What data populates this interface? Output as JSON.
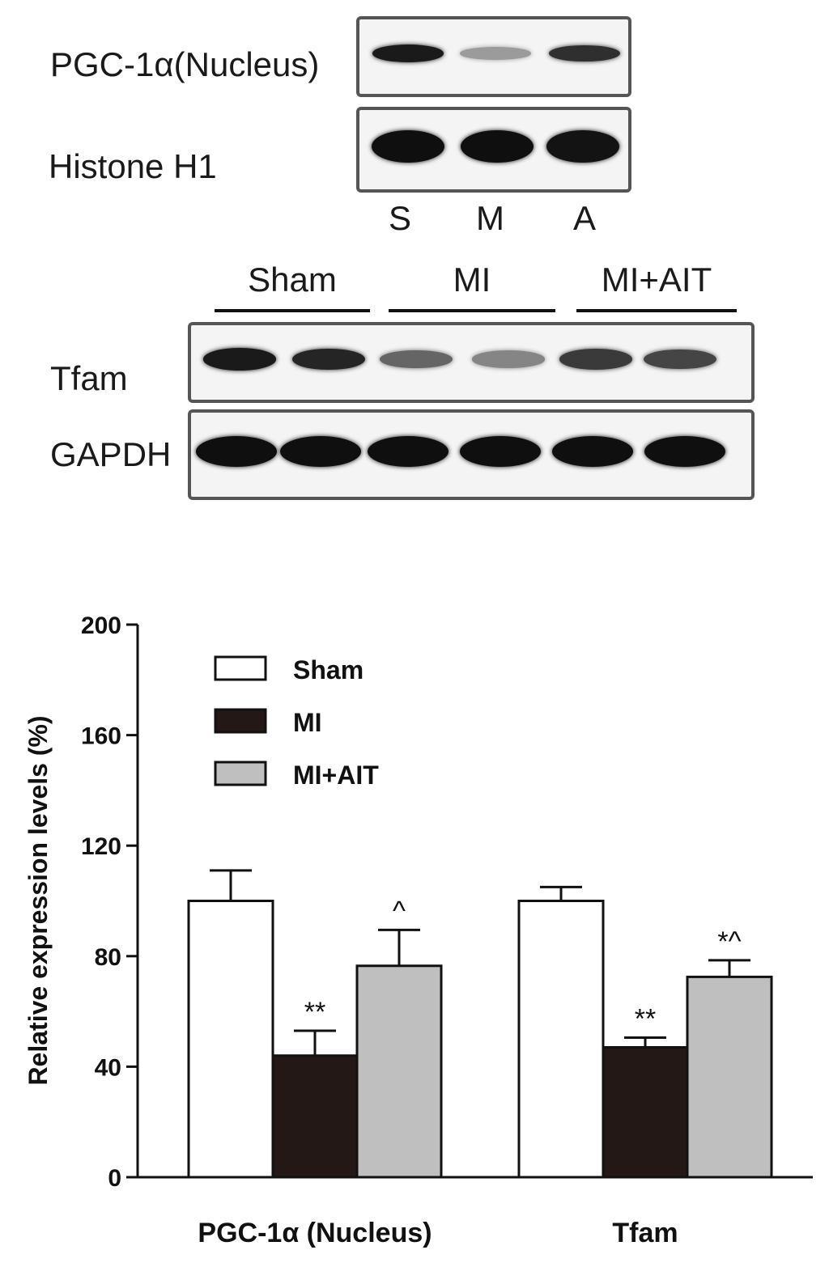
{
  "blot_top": {
    "rows": [
      {
        "label": "PGC-1α(Nucleus)",
        "band_intensity": [
          0.95,
          0.35,
          0.85
        ]
      },
      {
        "label": "Histone H1",
        "band_intensity": [
          1.0,
          1.0,
          0.98
        ]
      }
    ],
    "lanes": [
      "S",
      "M",
      "A"
    ]
  },
  "blot_bottom": {
    "groups": [
      "Sham",
      "MI",
      "MI+AIT"
    ],
    "rows": [
      {
        "label": "Tfam",
        "band_intensity": [
          0.95,
          0.9,
          0.6,
          0.45,
          0.8,
          0.75
        ]
      },
      {
        "label": "GAPDH",
        "band_intensity": [
          1.0,
          1.0,
          1.0,
          1.0,
          1.0,
          1.0
        ]
      }
    ]
  },
  "chart_data": {
    "type": "bar",
    "categories": [
      "PGC-1α (Nucleus)",
      "Tfam"
    ],
    "series": [
      {
        "name": "Sham",
        "color": "#ffffff",
        "values": [
          100,
          100
        ],
        "errors": [
          11,
          5
        ],
        "annotations": [
          "",
          ""
        ]
      },
      {
        "name": "MI",
        "color": "#231815",
        "values": [
          44,
          47
        ],
        "errors": [
          9,
          3.5
        ],
        "annotations": [
          "**",
          "**"
        ]
      },
      {
        "name": "MI+AIT",
        "color": "#bfbfbf",
        "values": [
          76.5,
          72.5
        ],
        "errors": [
          13,
          6
        ],
        "annotations": [
          "^",
          "*^"
        ]
      }
    ],
    "ylabel": "Relative expression levels (%)",
    "ylim": [
      0,
      200
    ],
    "yticks": [
      "0",
      "40",
      "80",
      "120",
      "160",
      "200"
    ],
    "grid": false,
    "legend_position": "top-left"
  }
}
